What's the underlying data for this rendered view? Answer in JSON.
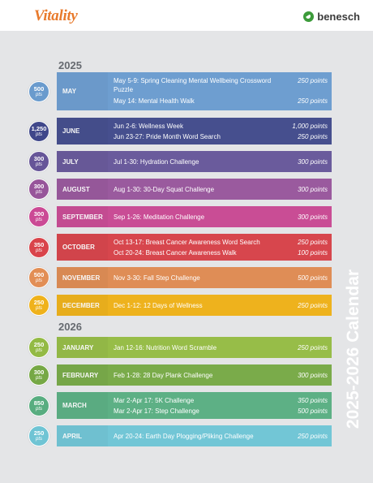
{
  "header": {
    "brand_left": "Vitality",
    "brand_right": "benesch",
    "brand_right_icon": "benesch-logo-icon"
  },
  "side_title": "2025-2026 Calendar",
  "years": [
    {
      "label": "2025",
      "rows": [
        {
          "badge_points": "500",
          "badge_unit": "pts",
          "month": "MAY",
          "color": "#6e9ed0",
          "badge_color": "#6a9bcd",
          "events": [
            {
              "name": "May 5-9: Spring Cleaning Mental Wellbeing Crossword Puzzle",
              "points": "250 points"
            },
            {
              "name": "May 14: Mental Health Walk",
              "points": "250 points"
            }
          ]
        },
        {
          "badge_points": "1,250",
          "badge_unit": "pts",
          "month": "JUNE",
          "color": "#464f8e",
          "badge_color": "#3f478a",
          "events": [
            {
              "name": "Jun 2-6: Wellness Week",
              "points": "1,000 points"
            },
            {
              "name": "Jun 23-27: Pride Month Word Search",
              "points": "250 points"
            }
          ]
        },
        {
          "badge_points": "300",
          "badge_unit": "pts",
          "month": "JULY",
          "color": "#6a5b9c",
          "badge_color": "#665598",
          "events": [
            {
              "name": "Jul 1-30: Hydration Challenge",
              "points": "300 points"
            }
          ]
        },
        {
          "badge_points": "300",
          "badge_unit": "pts",
          "month": "AUGUST",
          "color": "#9a5a9e",
          "badge_color": "#97559a",
          "events": [
            {
              "name": "Aug 1-30: 30-Day Squat Challenge",
              "points": "300 points"
            }
          ]
        },
        {
          "badge_points": "300",
          "badge_unit": "pts",
          "month": "SEPTEMBER",
          "color": "#c94d95",
          "badge_color": "#cb4a95",
          "events": [
            {
              "name": "Sep 1-26: Meditation Challenge",
              "points": "300 points"
            }
          ]
        },
        {
          "badge_points": "350",
          "badge_unit": "pts",
          "month": "OCTOBER",
          "color": "#d7464d",
          "badge_color": "#d9444b",
          "events": [
            {
              "name": "Oct 13-17: Breast Cancer Awareness Word Search",
              "points": "250 points"
            },
            {
              "name": "Oct 20-24: Breast Cancer Awareness Walk",
              "points": "100 points"
            }
          ]
        },
        {
          "badge_points": "500",
          "badge_unit": "pts",
          "month": "NOVEMBER",
          "color": "#df8d56",
          "badge_color": "#e28e55",
          "events": [
            {
              "name": "Nov 3-30: Fall Step Challenge",
              "points": "500 points"
            }
          ]
        },
        {
          "badge_points": "250",
          "badge_unit": "pts",
          "month": "DECEMBER",
          "color": "#eeb21d",
          "badge_color": "#efb21c",
          "events": [
            {
              "name": "Dec 1-12: 12 Days of Wellness",
              "points": "250 points"
            }
          ]
        }
      ]
    },
    {
      "label": "2026",
      "rows": [
        {
          "badge_points": "250",
          "badge_unit": "pts",
          "month": "JANUARY",
          "color": "#97bd48",
          "badge_color": "#93ba44",
          "events": [
            {
              "name": "Jan 12-16: Nutrition Word Scramble",
              "points": "250 points"
            }
          ]
        },
        {
          "badge_points": "300",
          "badge_unit": "pts",
          "month": "FEBRUARY",
          "color": "#7aab4a",
          "badge_color": "#76a845",
          "events": [
            {
              "name": "Feb 1-28: 28 Day Plank Challenge",
              "points": "300 points"
            }
          ]
        },
        {
          "badge_points": "850",
          "badge_unit": "pts",
          "month": "MARCH",
          "color": "#5db085",
          "badge_color": "#58ad80",
          "events": [
            {
              "name": "Mar 2-Apr 17: 5K Challenge",
              "points": "350 points"
            },
            {
              "name": "Mar 2-Apr 17: Step Challenge",
              "points": "500 points"
            }
          ]
        },
        {
          "badge_points": "250",
          "badge_unit": "pts",
          "month": "APRIL",
          "color": "#72c6d6",
          "badge_color": "#6fc4d4",
          "events": [
            {
              "name": "Apr 20-24: Earth Day Plogging/Pliking Challenge",
              "points": "250 points"
            }
          ]
        }
      ]
    }
  ]
}
